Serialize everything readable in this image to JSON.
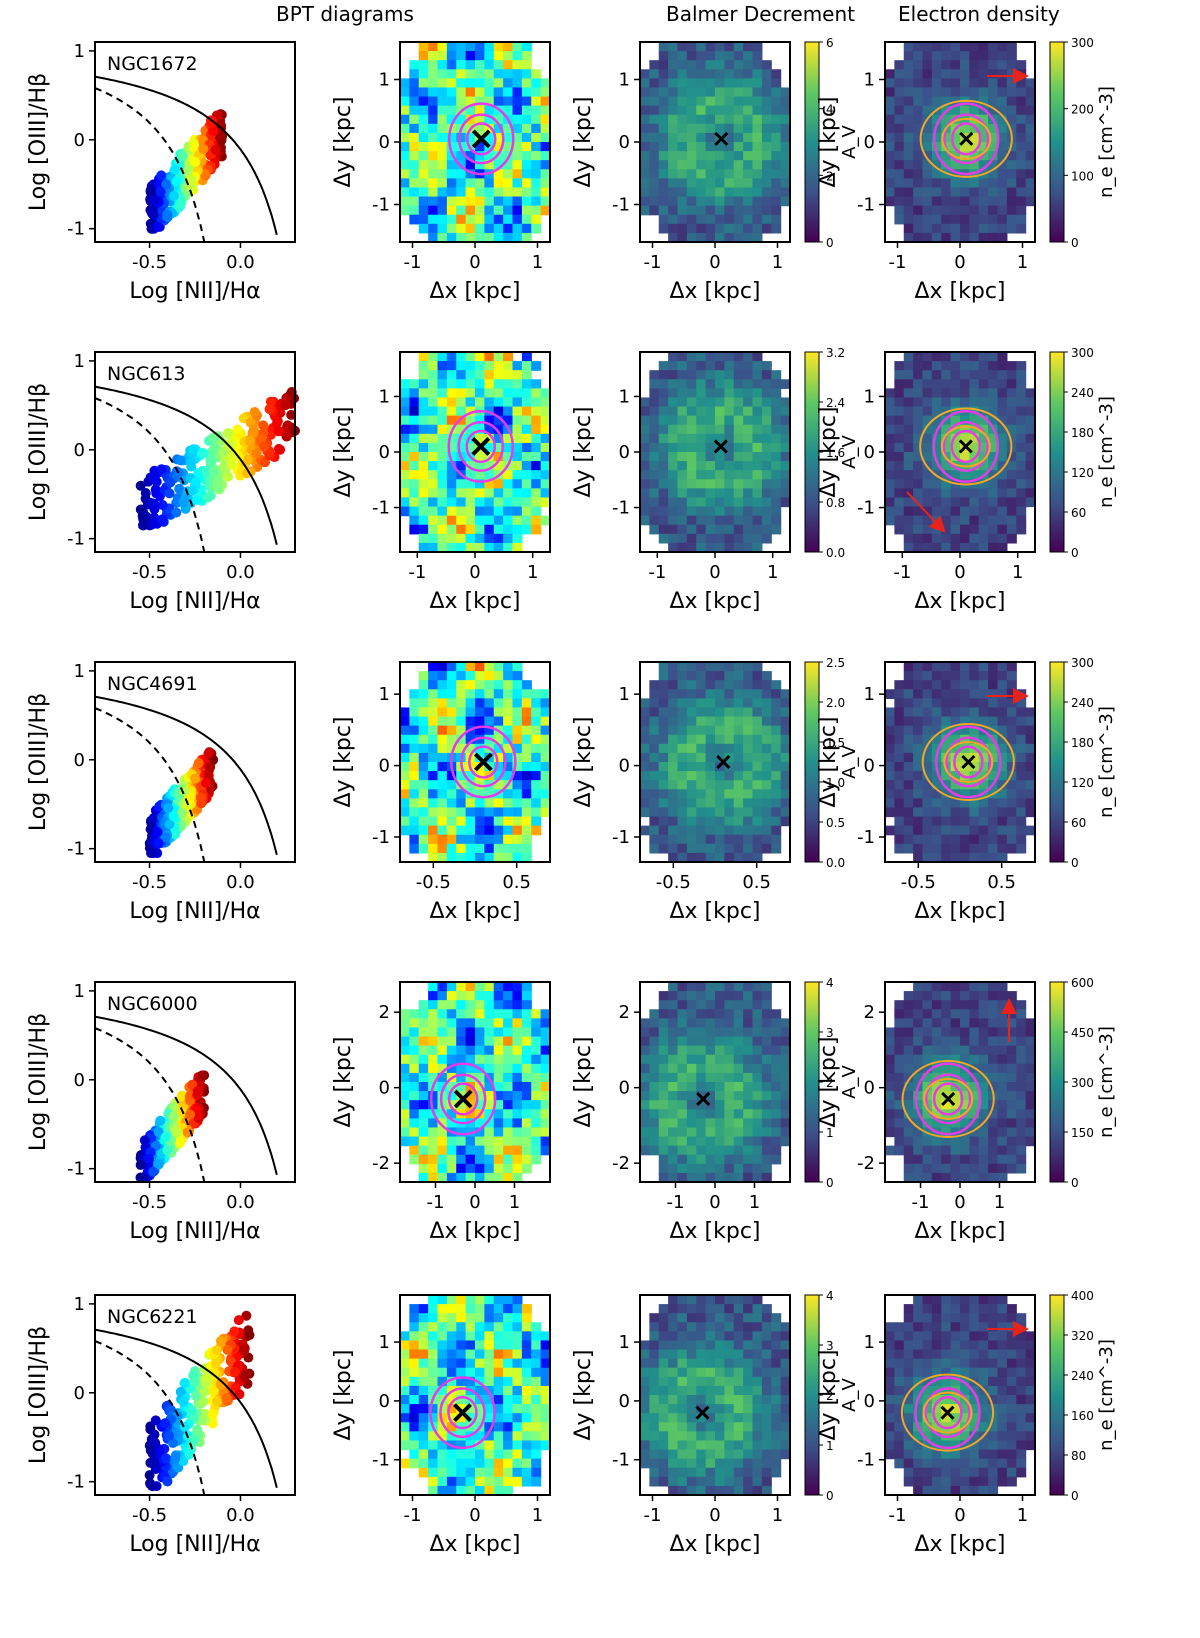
{
  "headers": {
    "bpt": "BPT diagrams",
    "balmer": "Balmer Decrement",
    "density": "Electron density"
  },
  "labels": {
    "bpt_xlabel": "Log [NII]/Hα",
    "bpt_ylabel": "Log [OIII]/Hβ",
    "map_xlabel": "Δx [kpc]",
    "map_ylabel": "Δy [kpc]",
    "av_label": "A_V",
    "ne_label": "n_e [cm^-3]"
  },
  "colors": {
    "contour_magenta": "#e83be8",
    "contour_orange": "#f5a623",
    "arrow_red": "#e8231c",
    "viridis_low": "#440154",
    "viridis_high": "#fde725"
  },
  "chart_data": [
    {
      "type": "scatter",
      "name": "NGC1672",
      "bpt": {
        "xlim": [
          -0.8,
          0.3
        ],
        "ylim": [
          -1.15,
          1.1
        ],
        "xticks": [
          "-0.5",
          "0.0"
        ],
        "yticks": [
          "-1",
          "0",
          "1"
        ],
        "cloud": {
          "xmin": -0.5,
          "xmax": -0.1,
          "ymin": -1.0,
          "ymax": 0.3
        }
      },
      "map": {
        "xlim": [
          -1.2,
          1.2
        ],
        "ylim": [
          -1.6,
          1.6
        ],
        "xticks": [
          "-1",
          "0",
          "1"
        ],
        "yticks": [
          "-1",
          "0",
          "1"
        ],
        "center": [
          0.1,
          0.05
        ]
      },
      "av": {
        "cbar": [
          "0",
          "2",
          "4",
          "6"
        ]
      },
      "ne": {
        "cbar": [
          "0",
          "100",
          "200",
          "300"
        ]
      },
      "arrow": "right"
    },
    {
      "type": "scatter",
      "name": "NGC613",
      "bpt": {
        "xlim": [
          -0.8,
          0.3
        ],
        "ylim": [
          -1.15,
          1.1
        ],
        "xticks": [
          "-0.5",
          "0.0"
        ],
        "yticks": [
          "-1",
          "0",
          "1"
        ],
        "cloud": {
          "xmin": -0.55,
          "xmax": 0.3,
          "ymin": -0.85,
          "ymax": 0.65
        }
      },
      "map": {
        "xlim": [
          -1.3,
          1.3
        ],
        "ylim": [
          -1.8,
          1.8
        ],
        "xticks": [
          "-1",
          "0",
          "1"
        ],
        "yticks": [
          "-1",
          "0",
          "1"
        ],
        "center": [
          0.1,
          0.1
        ]
      },
      "av": {
        "cbar": [
          "0.0",
          "0.8",
          "1.6",
          "2.4",
          "3.2"
        ]
      },
      "ne": {
        "cbar": [
          "0",
          "60",
          "120",
          "180",
          "240",
          "300"
        ]
      },
      "arrow": "down-right"
    },
    {
      "type": "scatter",
      "name": "NGC4691",
      "bpt": {
        "xlim": [
          -0.8,
          0.3
        ],
        "ylim": [
          -1.15,
          1.1
        ],
        "xticks": [
          "-0.5",
          "0.0"
        ],
        "yticks": [
          "-1",
          "0",
          "1"
        ],
        "cloud": {
          "xmin": -0.5,
          "xmax": -0.15,
          "ymin": -1.05,
          "ymax": 0.1
        }
      },
      "map": {
        "xlim": [
          -0.9,
          0.9
        ],
        "ylim": [
          -1.35,
          1.45
        ],
        "xticks": [
          "-0.5",
          "0.5"
        ],
        "yticks": [
          "-1",
          "0",
          "1"
        ],
        "center": [
          0.1,
          0.05
        ]
      },
      "av": {
        "cbar": [
          "0.0",
          "0.5",
          "1.0",
          "1.5",
          "2.0",
          "2.5"
        ]
      },
      "ne": {
        "cbar": [
          "0",
          "60",
          "120",
          "180",
          "240",
          "300"
        ]
      },
      "arrow": "right"
    },
    {
      "type": "scatter",
      "name": "NGC6000",
      "bpt": {
        "xlim": [
          -0.8,
          0.3
        ],
        "ylim": [
          -1.15,
          1.1
        ],
        "xticks": [
          "-0.5",
          "0.0"
        ],
        "yticks": [
          "-1",
          "0",
          "1"
        ],
        "cloud": {
          "xmin": -0.55,
          "xmax": -0.2,
          "ymin": -1.1,
          "ymax": 0.05
        }
      },
      "map": {
        "xlim": [
          -1.9,
          1.9
        ],
        "ylim": [
          -2.5,
          2.8
        ],
        "xticks": [
          "-1",
          "0",
          "1"
        ],
        "yticks": [
          "-2",
          "0",
          "2"
        ],
        "center": [
          -0.3,
          -0.3
        ]
      },
      "av": {
        "cbar": [
          "0",
          "1",
          "2",
          "3",
          "4"
        ]
      },
      "ne": {
        "cbar": [
          "0",
          "150",
          "300",
          "450",
          "600"
        ]
      },
      "arrow": "up"
    },
    {
      "type": "scatter",
      "name": "NGC6221",
      "bpt": {
        "xlim": [
          -0.8,
          0.3
        ],
        "ylim": [
          -1.15,
          1.1
        ],
        "xticks": [
          "-0.5",
          "0.0"
        ],
        "yticks": [
          "-1",
          "0",
          "1"
        ],
        "cloud": {
          "xmin": -0.5,
          "xmax": 0.05,
          "ymin": -1.05,
          "ymax": 0.9
        }
      },
      "map": {
        "xlim": [
          -1.2,
          1.2
        ],
        "ylim": [
          -1.6,
          1.8
        ],
        "xticks": [
          "-1",
          "0",
          "1"
        ],
        "yticks": [
          "-1",
          "0",
          "1"
        ],
        "center": [
          -0.2,
          -0.2
        ]
      },
      "av": {
        "cbar": [
          "0",
          "1",
          "2",
          "3",
          "4"
        ]
      },
      "ne": {
        "cbar": [
          "0",
          "80",
          "160",
          "240",
          "320",
          "400"
        ]
      },
      "arrow": "right"
    }
  ]
}
